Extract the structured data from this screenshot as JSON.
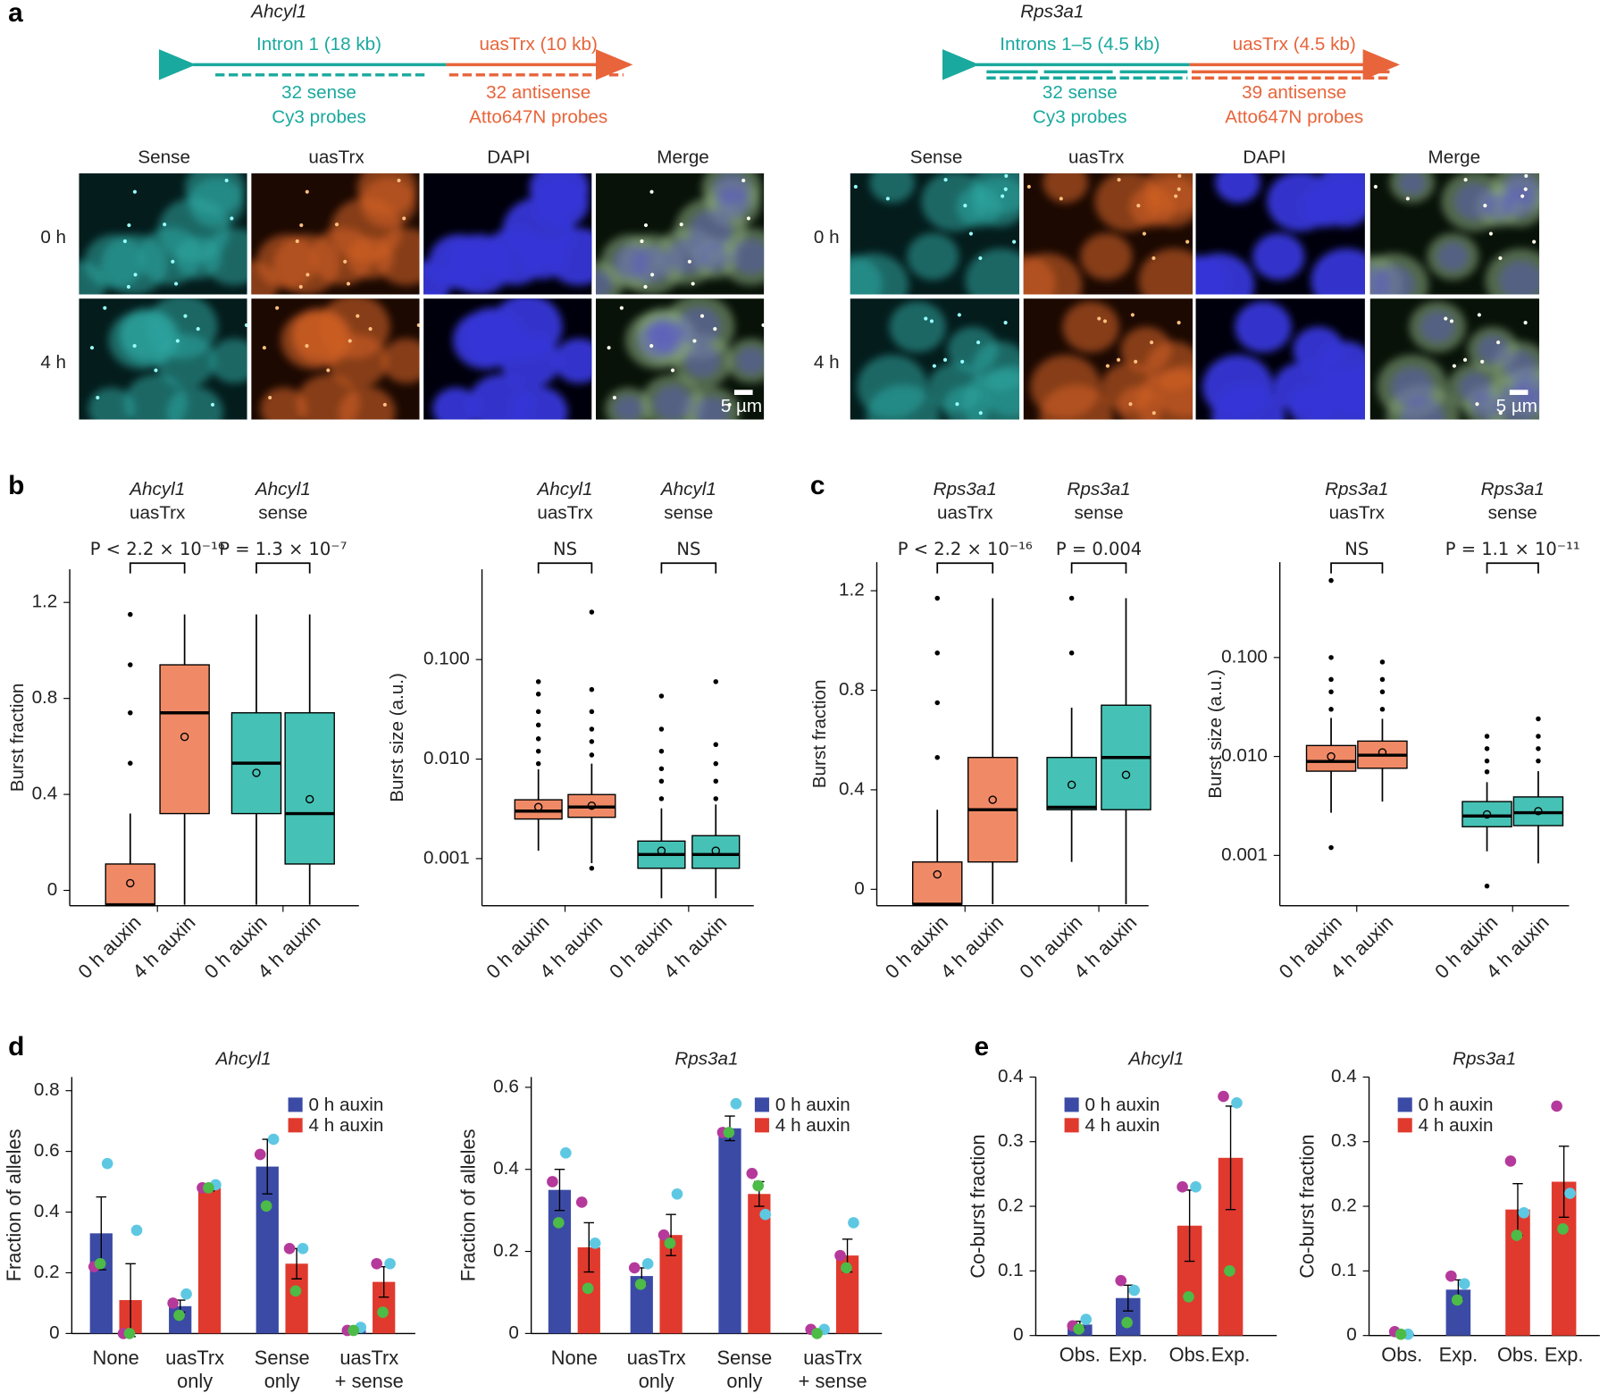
{
  "panel_labels": [
    "a",
    "b",
    "c",
    "d",
    "e"
  ],
  "panel_a": [
    {
      "gene": "Ahcyl1",
      "intron": "Intron 1 (18 kb)",
      "uastrx": "uasTrx (10 kb)",
      "sense_probes": [
        "32 sense",
        "Cy3 probes"
      ],
      "antisense_probes": [
        "32 antisense",
        "Atto647N probes"
      ],
      "columns": [
        "Sense",
        "uasTrx",
        "DAPI",
        "Merge"
      ],
      "rows": [
        "0 h",
        "4 h"
      ],
      "scale_bar": "5 µm"
    },
    {
      "gene": "Rps3a1",
      "intron": "Introns 1–5 (4.5 kb)",
      "uastrx": "uasTrx (4.5 kb)",
      "sense_probes": [
        "32 sense",
        "Cy3 probes"
      ],
      "antisense_probes": [
        "39 antisense",
        "Atto647N probes"
      ],
      "columns": [
        "Sense",
        "uasTrx",
        "DAPI",
        "Merge"
      ],
      "rows": [
        "0 h",
        "4 h"
      ],
      "scale_bar": "5 µm"
    }
  ],
  "chart_data": [
    {
      "type": "box",
      "groups": [
        {
          "gene": "Ahcyl1",
          "name": "uasTrx",
          "comparison": "P < 2.2 × 10⁻¹⁶"
        },
        {
          "gene": "Ahcyl1",
          "name": "sense",
          "comparison": "P = 1.3 × 10⁻⁷"
        }
      ],
      "ylabel": "Burst fraction",
      "categories": [
        "0 h auxin",
        "4 h auxin",
        "0 h auxin",
        "4 h auxin"
      ],
      "log_scale": false,
      "ylim": [
        -0.064,
        1.338
      ],
      "yticks": [
        0,
        0.4,
        0.8,
        1.2
      ],
      "boxes": [
        {
          "color": "#f08a66",
          "whisker_low": -0.06,
          "q1": -0.06,
          "median": -0.06,
          "q3": 0.11,
          "whisker_high": 0.32,
          "mean": 0.03,
          "outliers": [
            0.53,
            0.74,
            0.94,
            1.15
          ]
        },
        {
          "color": "#f08a66",
          "whisker_low": -0.06,
          "q1": 0.32,
          "median": 0.74,
          "q3": 0.94,
          "whisker_high": 1.15,
          "mean": 0.64,
          "outliers": []
        },
        {
          "color": "#45c2b5",
          "whisker_low": -0.06,
          "q1": 0.32,
          "median": 0.53,
          "q3": 0.74,
          "whisker_high": 1.15,
          "mean": 0.49,
          "outliers": []
        },
        {
          "color": "#45c2b5",
          "whisker_low": -0.06,
          "q1": 0.11,
          "median": 0.32,
          "q3": 0.74,
          "whisker_high": 1.15,
          "mean": 0.38,
          "outliers": []
        }
      ]
    },
    {
      "type": "box",
      "groups": [
        {
          "gene": "Ahcyl1",
          "name": "uasTrx",
          "comparison": "NS"
        },
        {
          "gene": "Ahcyl1",
          "name": "sense",
          "comparison": "NS"
        }
      ],
      "ylabel": "Burst size (a.u.)",
      "categories": [
        "0 h auxin",
        "4 h auxin",
        "0 h auxin",
        "4 h auxin"
      ],
      "log_scale": true,
      "ylim": [
        0.000336,
        0.807
      ],
      "yticks": [
        0.001,
        {
          "value": 0.01,
          "label": "0.010"
        },
        {
          "value": 0.1,
          "label": "0.100"
        }
      ],
      "boxes": [
        {
          "color": "#f08a66",
          "whisker_low": 0.0012,
          "q1": 0.0025,
          "median": 0.003,
          "q3": 0.0039,
          "whisker_high": 0.0079,
          "mean": 0.0033,
          "outliers": [
            0.009,
            0.012,
            0.016,
            0.022,
            0.03,
            0.045,
            0.06
          ]
        },
        {
          "color": "#f08a66",
          "whisker_low": 0.0009,
          "q1": 0.0026,
          "median": 0.0033,
          "q3": 0.0044,
          "whisker_high": 0.009,
          "mean": 0.0034,
          "outliers": [
            0.0008,
            0.011,
            0.015,
            0.02,
            0.03,
            0.05,
            0.3
          ]
        },
        {
          "color": "#45c2b5",
          "whisker_low": 0.0004,
          "q1": 0.0008,
          "median": 0.0011,
          "q3": 0.0015,
          "whisker_high": 0.0032,
          "mean": 0.0012,
          "outliers": [
            0.004,
            0.006,
            0.008,
            0.012,
            0.02,
            0.043
          ]
        },
        {
          "color": "#45c2b5",
          "whisker_low": 0.0004,
          "q1": 0.0008,
          "median": 0.0011,
          "q3": 0.0017,
          "whisker_high": 0.0035,
          "mean": 0.0012,
          "outliers": [
            0.004,
            0.006,
            0.009,
            0.014,
            0.06
          ]
        }
      ]
    },
    {
      "type": "box",
      "groups": [
        {
          "gene": "Rps3a1",
          "name": "uasTrx",
          "comparison": "P < 2.2 × 10⁻¹⁶"
        },
        {
          "gene": "Rps3a1",
          "name": "sense",
          "comparison": "P = 0.004"
        }
      ],
      "ylabel": "Burst fraction",
      "categories": [
        "0 h auxin",
        "4 h auxin",
        "0 h auxin",
        "4 h auxin"
      ],
      "log_scale": false,
      "ylim": [
        -0.066,
        1.315
      ],
      "yticks": [
        0,
        0.4,
        0.8,
        1.2
      ],
      "boxes": [
        {
          "color": "#f08a66",
          "whisker_low": -0.06,
          "q1": -0.06,
          "median": -0.06,
          "q3": 0.11,
          "whisker_high": 0.32,
          "mean": 0.06,
          "outliers": [
            0.53,
            0.75,
            0.95,
            1.17
          ]
        },
        {
          "color": "#f08a66",
          "whisker_low": -0.06,
          "q1": 0.11,
          "median": 0.32,
          "q3": 0.53,
          "whisker_high": 1.17,
          "mean": 0.36,
          "outliers": []
        },
        {
          "color": "#45c2b5",
          "whisker_low": 0.11,
          "q1": 0.32,
          "median": 0.33,
          "q3": 0.53,
          "whisker_high": 0.73,
          "mean": 0.42,
          "outliers": [
            0.95,
            1.17
          ]
        },
        {
          "color": "#45c2b5",
          "whisker_low": -0.06,
          "q1": 0.32,
          "median": 0.53,
          "q3": 0.74,
          "whisker_high": 1.17,
          "mean": 0.46,
          "outliers": []
        }
      ]
    },
    {
      "type": "box",
      "groups": [
        {
          "gene": "Rps3a1",
          "name": "uasTrx",
          "comparison": "NS"
        },
        {
          "gene": "Rps3a1",
          "name": "sense",
          "comparison": "P = 1.1 × 10⁻¹¹"
        }
      ],
      "ylabel": "Burst size (a.u.)",
      "categories": [
        "0 h auxin",
        "4 h auxin",
        "0 h auxin",
        "4 h auxin"
      ],
      "log_scale": true,
      "ylim": [
        0.00031,
        0.92
      ],
      "yticks": [
        0.001,
        {
          "value": 0.01,
          "label": "0.010"
        },
        {
          "value": 0.1,
          "label": "0.100"
        }
      ],
      "boxes": [
        {
          "color": "#f08a66",
          "whisker_low": 0.0027,
          "q1": 0.0071,
          "median": 0.0089,
          "q3": 0.0129,
          "whisker_high": 0.0245,
          "mean": 0.01,
          "outliers": [
            0.0012,
            0.03,
            0.045,
            0.06,
            0.1,
            0.6
          ]
        },
        {
          "color": "#f08a66",
          "whisker_low": 0.0035,
          "q1": 0.0076,
          "median": 0.0103,
          "q3": 0.0143,
          "whisker_high": 0.024,
          "mean": 0.011,
          "outliers": [
            0.03,
            0.045,
            0.06,
            0.09
          ]
        },
        {
          "color": "#45c2b5",
          "whisker_low": 0.0011,
          "q1": 0.00195,
          "median": 0.0025,
          "q3": 0.0035,
          "whisker_high": 0.0055,
          "mean": 0.0026,
          "outliers": [
            0.00049,
            0.007,
            0.009,
            0.012,
            0.016
          ]
        },
        {
          "color": "#45c2b5",
          "whisker_low": 0.00083,
          "q1": 0.002,
          "median": 0.0027,
          "q3": 0.0039,
          "whisker_high": 0.0071,
          "mean": 0.0028,
          "outliers": [
            0.009,
            0.012,
            0.016,
            0.024
          ]
        }
      ]
    },
    {
      "type": "bar",
      "title": "Ahcyl1",
      "ylabel": "Fraction of alleles",
      "categories": [
        [
          "None"
        ],
        [
          "uasTrx",
          "only"
        ],
        [
          "Sense",
          "only"
        ],
        [
          "uasTrx",
          "+ sense"
        ]
      ],
      "ylim": [
        0,
        0.845
      ],
      "yticks": [
        0,
        0.2,
        0.4,
        0.6,
        0.8
      ],
      "legend": "upper right",
      "replicate_colors": [
        "#b5399b",
        "#5ec8e3",
        "#4dbb47"
      ],
      "series": [
        {
          "name": "0 h auxin",
          "color": "#3b4ba5",
          "values": [
            0.33,
            0.09,
            0.55,
            0.015
          ],
          "errors": [
            0.12,
            0.02,
            0.09,
            0.008
          ],
          "points": [
            [
              0.22,
              0.56,
              0.23
            ],
            [
              0.1,
              0.13,
              0.06
            ],
            [
              0.59,
              0.64,
              0.42
            ],
            [
              0.01,
              0.02,
              0.01
            ]
          ]
        },
        {
          "name": "4 h auxin",
          "color": "#e03a2e",
          "values": [
            0.11,
            0.48,
            0.23,
            0.17
          ],
          "errors": [
            0.12,
            0.01,
            0.05,
            0.05
          ],
          "points": [
            [
              0,
              0.34,
              0
            ],
            [
              0.48,
              0.49,
              0.48
            ],
            [
              0.28,
              0.28,
              0.14
            ],
            [
              0.23,
              0.23,
              0.07
            ]
          ]
        }
      ]
    },
    {
      "type": "bar",
      "title": "Rps3a1",
      "ylabel": "Fraction of alleles",
      "categories": [
        [
          "None"
        ],
        [
          "uasTrx",
          "only"
        ],
        [
          "Sense",
          "only"
        ],
        [
          "uasTrx",
          "+ sense"
        ]
      ],
      "ylim": [
        0,
        0.625
      ],
      "yticks": [
        0,
        0.2,
        0.4,
        0.6
      ],
      "legend": "upper right",
      "replicate_colors": [
        "#b5399b",
        "#5ec8e3",
        "#4dbb47"
      ],
      "series": [
        {
          "name": "0 h auxin",
          "color": "#3b4ba5",
          "values": [
            0.35,
            0.14,
            0.5,
            0.002
          ],
          "errors": [
            0.05,
            0.02,
            0.03,
            0.002
          ],
          "points": [
            [
              0.37,
              0.44,
              0.27
            ],
            [
              0.16,
              0.17,
              0.12
            ],
            [
              0.49,
              0.56,
              0.49
            ],
            [
              0.01,
              0.01,
              0
            ]
          ]
        },
        {
          "name": "4 h auxin",
          "color": "#e03a2e",
          "values": [
            0.21,
            0.24,
            0.34,
            0.19
          ],
          "errors": [
            0.06,
            0.05,
            0.03,
            0.04
          ],
          "points": [
            [
              0.32,
              0.22,
              0.11
            ],
            [
              0.24,
              0.34,
              0.22
            ],
            [
              0.39,
              0.29,
              0.36
            ],
            [
              0.19,
              0.27,
              0.16
            ]
          ]
        }
      ]
    },
    {
      "type": "bar",
      "title": "Ahcyl1",
      "ylabel": "Co-burst fraction",
      "categories": [
        "Obs.",
        "Exp.",
        "Obs.",
        "Exp."
      ],
      "ylim": [
        0,
        0.4
      ],
      "yticks": [
        0,
        0.1,
        0.2,
        0.3,
        0.4
      ],
      "legend": "upper left",
      "replicate_colors": [
        "#b5399b",
        "#5ec8e3",
        "#4dbb47"
      ],
      "series": [
        {
          "name": "0 h auxin",
          "color": "#3b4ba5",
          "values": [
            0.017,
            0.058,
            null,
            null
          ],
          "errors": [
            0.005,
            0.02,
            null,
            null
          ],
          "points": [
            [
              0.015,
              0.025,
              0.01
            ],
            [
              0.085,
              0.07,
              0.02
            ],
            null,
            null
          ]
        },
        {
          "name": "4 h auxin",
          "color": "#e03a2e",
          "values": [
            null,
            null,
            0.17,
            0.275
          ],
          "errors": [
            null,
            null,
            0.055,
            0.08
          ],
          "points": [
            null,
            null,
            [
              0.23,
              0.23,
              0.06
            ],
            [
              0.37,
              0.36,
              0.1
            ]
          ]
        }
      ]
    },
    {
      "type": "bar",
      "title": "Rps3a1",
      "ylabel": "Co-burst fraction",
      "categories": [
        "Obs.",
        "Exp.",
        "Obs.",
        "Exp."
      ],
      "ylim": [
        0,
        0.4
      ],
      "yticks": [
        0,
        0.1,
        0.2,
        0.3,
        0.4
      ],
      "legend": "upper left",
      "replicate_colors": [
        "#b5399b",
        "#5ec8e3",
        "#4dbb47"
      ],
      "series": [
        {
          "name": "0 h auxin",
          "color": "#3b4ba5",
          "values": [
            0.003,
            0.071,
            null,
            null
          ],
          "errors": [
            0.002,
            0.015,
            null,
            null
          ],
          "points": [
            [
              0.006,
              0.002,
              0.002
            ],
            [
              0.092,
              0.08,
              0.055
            ],
            null,
            null
          ]
        },
        {
          "name": "4 h auxin",
          "color": "#e03a2e",
          "values": [
            null,
            null,
            0.195,
            0.238
          ],
          "errors": [
            null,
            null,
            0.04,
            0.055
          ],
          "points": [
            null,
            null,
            [
              0.27,
              0.19,
              0.155
            ],
            [
              0.355,
              0.22,
              0.165
            ]
          ]
        }
      ]
    }
  ]
}
